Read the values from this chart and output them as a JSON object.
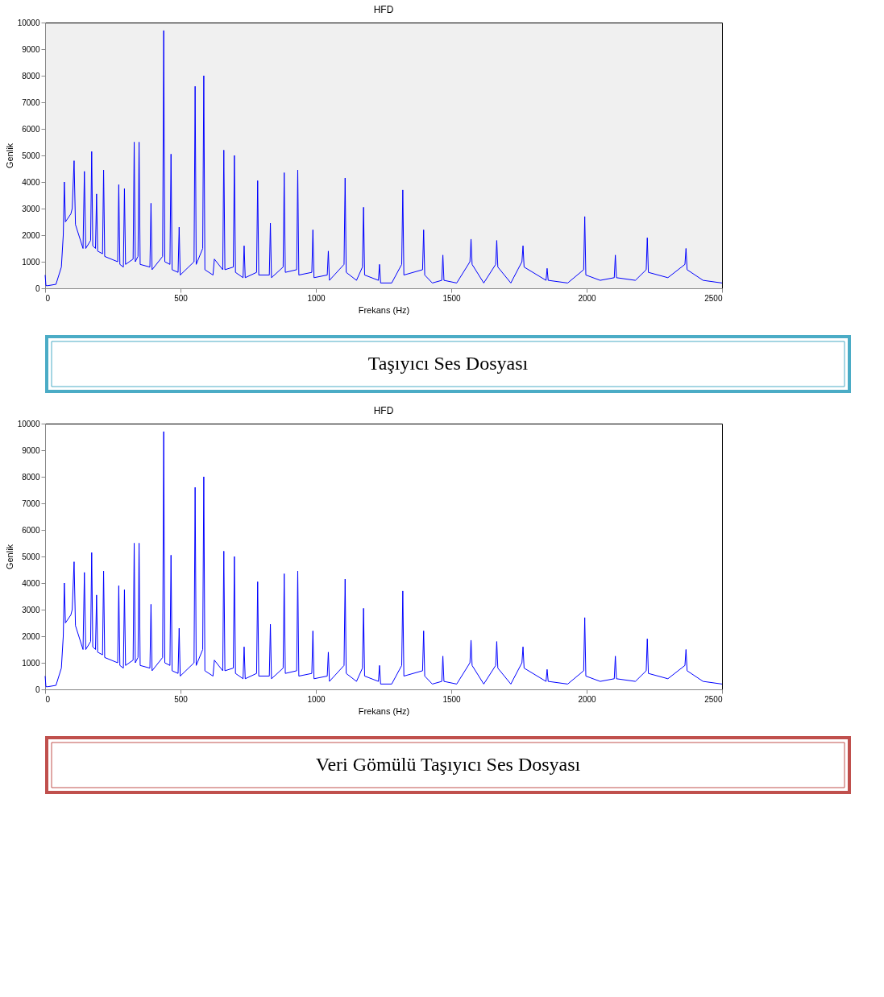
{
  "chart_data": [
    {
      "type": "line",
      "title": "HFD",
      "xlabel": "Frekans (Hz)",
      "ylabel": "Genlik",
      "xlim": [
        0,
        2500
      ],
      "xticks": [
        0,
        500,
        1000,
        1500,
        2000,
        2500
      ],
      "ylim": [
        0,
        10000
      ],
      "yticks": [
        0,
        1000,
        2000,
        3000,
        4000,
        5000,
        6000,
        7000,
        8000,
        9000,
        10000
      ],
      "annotations": [
        "Taşıyıcı Ses Dosyası"
      ],
      "series": [
        {
          "color": "#0000ff",
          "x": [
            0,
            3,
            10,
            40,
            60,
            67,
            71,
            75,
            95,
            100,
            107,
            112,
            140,
            145,
            150,
            168,
            172,
            176,
            186,
            190,
            194,
            212,
            216,
            220,
            268,
            272,
            276,
            289,
            293,
            297,
            325,
            329,
            333,
            343,
            347,
            351,
            387,
            391,
            395,
            434,
            438,
            442,
            461,
            465,
            469,
            491,
            495,
            499,
            550,
            554,
            558,
            582,
            586,
            590,
            620,
            625,
            656,
            660,
            664,
            695,
            699,
            703,
            731,
            735,
            739,
            781,
            785,
            789,
            828,
            832,
            836,
            879,
            883,
            887,
            929,
            933,
            937,
            985,
            989,
            993,
            1042,
            1046,
            1050,
            1104,
            1108,
            1112,
            1150,
            1172,
            1176,
            1180,
            1231,
            1235,
            1239,
            1280,
            1317,
            1321,
            1325,
            1394,
            1398,
            1402,
            1430,
            1465,
            1469,
            1473,
            1520,
            1569,
            1573,
            1577,
            1620,
            1664,
            1668,
            1672,
            1720,
            1761,
            1765,
            1769,
            1850,
            1854,
            1858,
            1930,
            1989,
            1993,
            1997,
            2050,
            2102,
            2106,
            2110,
            2180,
            2220,
            2224,
            2228,
            2300,
            2363,
            2367,
            2371,
            2430,
            2500
          ],
          "values": [
            500,
            100,
            100,
            150,
            800,
            2000,
            4000,
            2500,
            2800,
            3000,
            4800,
            2400,
            1500,
            4400,
            1500,
            1800,
            5150,
            1600,
            1500,
            3550,
            1400,
            1300,
            4450,
            1200,
            1000,
            3900,
            900,
            800,
            3750,
            900,
            1100,
            5500,
            1000,
            1200,
            5500,
            900,
            800,
            3200,
            700,
            1200,
            9700,
            1000,
            900,
            5050,
            700,
            600,
            2300,
            500,
            1000,
            7600,
            900,
            1500,
            8000,
            700,
            500,
            1100,
            700,
            5200,
            700,
            800,
            5000,
            600,
            400,
            1600,
            400,
            600,
            4050,
            500,
            500,
            2450,
            400,
            800,
            4350,
            600,
            700,
            4450,
            500,
            600,
            2200,
            400,
            500,
            1400,
            300,
            900,
            4150,
            600,
            300,
            800,
            3050,
            500,
            300,
            900,
            200,
            200,
            900,
            3700,
            500,
            700,
            2200,
            500,
            200,
            300,
            1250,
            300,
            200,
            1000,
            1850,
            900,
            200,
            900,
            1800,
            800,
            200,
            1000,
            1600,
            800,
            300,
            750,
            300,
            200,
            700,
            2700,
            500,
            300,
            400,
            1250,
            400,
            300,
            700,
            1900,
            600,
            400,
            900,
            1500,
            700,
            300,
            200
          ]
        }
      ]
    },
    {
      "type": "line",
      "title": "HFD",
      "xlabel": "Frekans (Hz)",
      "ylabel": "Genlik",
      "xlim": [
        0,
        2500
      ],
      "xticks": [
        0,
        500,
        1000,
        1500,
        2000,
        2500
      ],
      "ylim": [
        0,
        10000
      ],
      "yticks": [
        0,
        1000,
        2000,
        3000,
        4000,
        5000,
        6000,
        7000,
        8000,
        9000,
        10000
      ],
      "annotations": [
        "Veri Gömülü Taşıyıcı Ses Dosyası"
      ],
      "series": [
        {
          "color": "#0000ff",
          "x": [
            0,
            3,
            10,
            40,
            60,
            67,
            71,
            75,
            95,
            100,
            107,
            112,
            140,
            145,
            150,
            168,
            172,
            176,
            186,
            190,
            194,
            212,
            216,
            220,
            268,
            272,
            276,
            289,
            293,
            297,
            325,
            329,
            333,
            343,
            347,
            351,
            387,
            391,
            395,
            434,
            438,
            442,
            461,
            465,
            469,
            491,
            495,
            499,
            550,
            554,
            558,
            582,
            586,
            590,
            620,
            625,
            656,
            660,
            664,
            695,
            699,
            703,
            731,
            735,
            739,
            781,
            785,
            789,
            828,
            832,
            836,
            879,
            883,
            887,
            929,
            933,
            937,
            985,
            989,
            993,
            1042,
            1046,
            1050,
            1104,
            1108,
            1112,
            1150,
            1172,
            1176,
            1180,
            1231,
            1235,
            1239,
            1280,
            1317,
            1321,
            1325,
            1394,
            1398,
            1402,
            1430,
            1465,
            1469,
            1473,
            1520,
            1569,
            1573,
            1577,
            1620,
            1664,
            1668,
            1672,
            1720,
            1761,
            1765,
            1769,
            1850,
            1854,
            1858,
            1930,
            1989,
            1993,
            1997,
            2050,
            2102,
            2106,
            2110,
            2180,
            2220,
            2224,
            2228,
            2300,
            2363,
            2367,
            2371,
            2430,
            2500
          ],
          "values": [
            500,
            100,
            100,
            150,
            800,
            2000,
            4000,
            2500,
            2800,
            3000,
            4800,
            2400,
            1500,
            4400,
            1500,
            1800,
            5150,
            1600,
            1500,
            3550,
            1400,
            1300,
            4450,
            1200,
            1000,
            3900,
            900,
            800,
            3750,
            900,
            1100,
            5500,
            1000,
            1200,
            5500,
            900,
            800,
            3200,
            700,
            1200,
            9700,
            1000,
            900,
            5050,
            700,
            600,
            2300,
            500,
            1000,
            7600,
            900,
            1500,
            8000,
            700,
            500,
            1100,
            700,
            5200,
            700,
            800,
            5000,
            600,
            400,
            1600,
            400,
            600,
            4050,
            500,
            500,
            2450,
            400,
            800,
            4350,
            600,
            700,
            4450,
            500,
            600,
            2200,
            400,
            500,
            1400,
            300,
            900,
            4150,
            600,
            300,
            800,
            3050,
            500,
            300,
            900,
            200,
            200,
            900,
            3700,
            500,
            700,
            2200,
            500,
            200,
            300,
            1250,
            300,
            200,
            1000,
            1850,
            900,
            200,
            900,
            1800,
            800,
            200,
            1000,
            1600,
            800,
            300,
            750,
            300,
            200,
            700,
            2700,
            500,
            300,
            400,
            1250,
            400,
            300,
            700,
            1900,
            600,
            400,
            900,
            1500,
            700,
            300,
            200
          ]
        }
      ]
    }
  ]
}
